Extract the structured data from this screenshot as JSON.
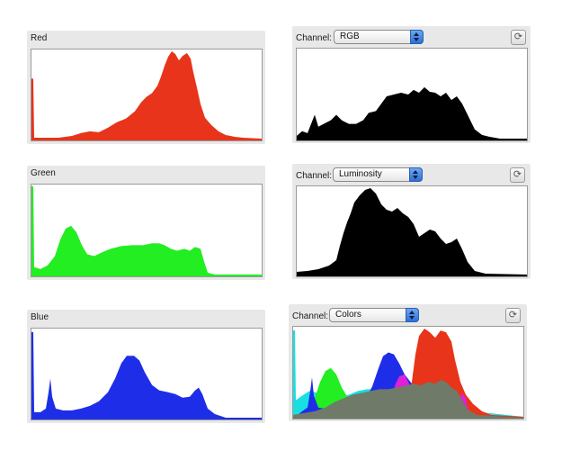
{
  "panels": {
    "red": {
      "title": "Red",
      "color": "#e8341a"
    },
    "green": {
      "title": "Green",
      "color": "#22ee22"
    },
    "blue": {
      "title": "Blue",
      "color": "#1e2ee8"
    },
    "rgb": {
      "channel_label": "Channel:",
      "selected": "RGB",
      "color": "#000000"
    },
    "luminosity": {
      "channel_label": "Channel:",
      "selected": "Luminosity",
      "color": "#000000"
    },
    "colors": {
      "channel_label": "Channel:",
      "selected": "Colors"
    }
  },
  "icons": {
    "refresh": "refresh-icon",
    "stepper": "stepper-arrows-icon"
  },
  "colors_overlay": {
    "cyan": "#18e0e0",
    "green": "#22ee22",
    "blue": "#1e2ee8",
    "red": "#e8341a",
    "magenta": "#e020d8",
    "yellow": "#e8e020",
    "overlap": "#707a68"
  }
}
